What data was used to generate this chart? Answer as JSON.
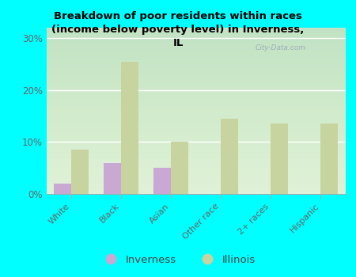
{
  "title": "Breakdown of poor residents within races\n(income below poverty level) in Inverness,\nIL",
  "categories": [
    "White",
    "Black",
    "Asian",
    "Other race",
    "2+ races",
    "Hispanic"
  ],
  "inverness_values": [
    2.0,
    6.0,
    5.0,
    0.0,
    0.0,
    0.0
  ],
  "illinois_values": [
    8.5,
    25.5,
    10.0,
    14.5,
    13.5,
    13.5
  ],
  "inverness_color": "#c9a8d4",
  "illinois_color": "#c8d4a0",
  "background_color": "#00ffff",
  "plot_bg_top": "#c8e8c0",
  "plot_bg_bottom": "#f0f8e8",
  "yticks": [
    0,
    10,
    20,
    30
  ],
  "ylim": [
    0,
    32
  ],
  "bar_width": 0.35,
  "watermark": "City-Data.com",
  "legend_inverness": "Inverness",
  "legend_illinois": "Illinois"
}
